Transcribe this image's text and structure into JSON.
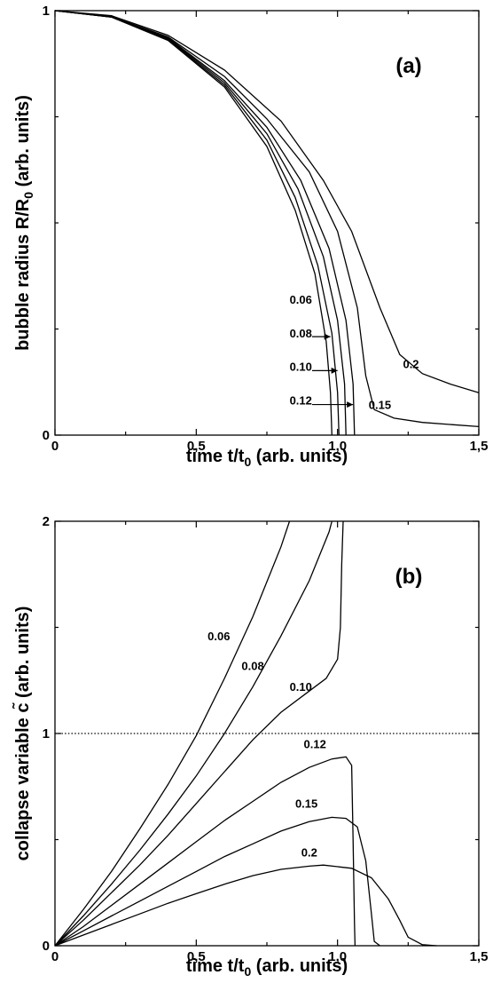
{
  "chart_data": [
    {
      "type": "line",
      "panel_label": "(a)",
      "xlabel": "time t/t",
      "xlabel_sub": "0",
      "xlabel_tail": "(arb. units)",
      "ylabel": "bubble radius R/R",
      "ylabel_sub": "0",
      "ylabel_tail": "(arb. units)",
      "xlim": [
        0,
        1.5
      ],
      "ylim": [
        0,
        1
      ],
      "x_ticklabels": [
        {
          "v": 0,
          "t": "0"
        },
        {
          "v": 0.5,
          "t": "0,5"
        },
        {
          "v": 1.0,
          "t": "1,0"
        },
        {
          "v": 1.5,
          "t": "1,5"
        }
      ],
      "y_ticklabels": [
        {
          "v": 0,
          "t": "0"
        },
        {
          "v": 1,
          "t": "1"
        }
      ],
      "series": [
        {
          "name": "0.06",
          "points": [
            [
              0,
              1
            ],
            [
              0.2,
              0.985
            ],
            [
              0.4,
              0.93
            ],
            [
              0.6,
              0.82
            ],
            [
              0.75,
              0.68
            ],
            [
              0.85,
              0.53
            ],
            [
              0.92,
              0.38
            ],
            [
              0.96,
              0.22
            ],
            [
              0.975,
              0.1
            ],
            [
              0.98,
              0
            ]
          ]
        },
        {
          "name": "0.08",
          "points": [
            [
              0,
              1
            ],
            [
              0.2,
              0.985
            ],
            [
              0.4,
              0.932
            ],
            [
              0.6,
              0.825
            ],
            [
              0.75,
              0.695
            ],
            [
              0.85,
              0.56
            ],
            [
              0.93,
              0.4
            ],
            [
              0.98,
              0.24
            ],
            [
              1.0,
              0.1
            ],
            [
              1.005,
              0
            ]
          ]
        },
        {
          "name": "0.10",
          "points": [
            [
              0,
              1
            ],
            [
              0.2,
              0.985
            ],
            [
              0.4,
              0.934
            ],
            [
              0.6,
              0.83
            ],
            [
              0.75,
              0.71
            ],
            [
              0.86,
              0.58
            ],
            [
              0.95,
              0.42
            ],
            [
              1.0,
              0.27
            ],
            [
              1.025,
              0.12
            ],
            [
              1.03,
              0
            ]
          ]
        },
        {
          "name": "0.12",
          "points": [
            [
              0,
              1
            ],
            [
              0.2,
              0.986
            ],
            [
              0.4,
              0.936
            ],
            [
              0.6,
              0.835
            ],
            [
              0.75,
              0.725
            ],
            [
              0.87,
              0.6
            ],
            [
              0.97,
              0.44
            ],
            [
              1.03,
              0.27
            ],
            [
              1.055,
              0.12
            ],
            [
              1.06,
              0
            ]
          ]
        },
        {
          "name": "0.15",
          "points": [
            [
              0,
              1
            ],
            [
              0.2,
              0.986
            ],
            [
              0.4,
              0.938
            ],
            [
              0.6,
              0.845
            ],
            [
              0.75,
              0.745
            ],
            [
              0.9,
              0.62
            ],
            [
              1.0,
              0.48
            ],
            [
              1.07,
              0.3
            ],
            [
              1.1,
              0.14
            ],
            [
              1.13,
              0.06
            ],
            [
              1.2,
              0.04
            ],
            [
              1.3,
              0.03
            ],
            [
              1.5,
              0.02
            ]
          ]
        },
        {
          "name": "0.2",
          "points": [
            [
              0,
              1
            ],
            [
              0.2,
              0.988
            ],
            [
              0.4,
              0.942
            ],
            [
              0.6,
              0.86
            ],
            [
              0.8,
              0.74
            ],
            [
              0.95,
              0.6
            ],
            [
              1.05,
              0.48
            ],
            [
              1.15,
              0.3
            ],
            [
              1.22,
              0.19
            ],
            [
              1.3,
              0.145
            ],
            [
              1.4,
              0.12
            ],
            [
              1.5,
              0.1
            ]
          ]
        }
      ],
      "curve_labels": [
        {
          "text": "0.06",
          "x": 0.87,
          "y": 0.31
        },
        {
          "text": "0.08",
          "x": 0.87,
          "y": 0.23
        },
        {
          "text": "0.10",
          "x": 0.87,
          "y": 0.152
        },
        {
          "text": "0.12",
          "x": 0.87,
          "y": 0.072
        },
        {
          "text": "0.15",
          "x": 1.15,
          "y": 0.062
        },
        {
          "text": "0.2",
          "x": 1.26,
          "y": 0.158
        }
      ],
      "arrows": [
        {
          "from": [
            0.91,
            0.232
          ],
          "to": [
            0.975,
            0.232
          ]
        },
        {
          "from": [
            0.91,
            0.152
          ],
          "to": [
            1.0,
            0.152
          ]
        },
        {
          "from": [
            0.91,
            0.072
          ],
          "to": [
            1.055,
            0.072
          ]
        }
      ]
    },
    {
      "type": "line",
      "panel_label": "(b)",
      "xlabel": "time t/t",
      "xlabel_sub": "0",
      "xlabel_tail": "(arb. units)",
      "ylabel": "collapse variable c̃",
      "ylabel_tail": "(arb. units)",
      "xlim": [
        0,
        1.5
      ],
      "ylim": [
        0,
        2
      ],
      "x_ticklabels": [
        {
          "v": 0,
          "t": "0"
        },
        {
          "v": 0.5,
          "t": "0,5"
        },
        {
          "v": 1.0,
          "t": "1,0"
        },
        {
          "v": 1.5,
          "t": "1,5"
        }
      ],
      "y_ticklabels": [
        {
          "v": 0,
          "t": "0"
        },
        {
          "v": 1,
          "t": "1"
        },
        {
          "v": 2,
          "t": "2"
        }
      ],
      "reference_line_y": 1,
      "series": [
        {
          "name": "0.06",
          "points": [
            [
              0,
              0
            ],
            [
              0.1,
              0.17
            ],
            [
              0.2,
              0.35
            ],
            [
              0.3,
              0.55
            ],
            [
              0.4,
              0.76
            ],
            [
              0.5,
              0.99
            ],
            [
              0.6,
              1.26
            ],
            [
              0.7,
              1.55
            ],
            [
              0.8,
              1.88
            ],
            [
              0.83,
              2.0
            ]
          ]
        },
        {
          "name": "0.08",
          "points": [
            [
              0,
              0
            ],
            [
              0.1,
              0.14
            ],
            [
              0.2,
              0.29
            ],
            [
              0.3,
              0.45
            ],
            [
              0.4,
              0.62
            ],
            [
              0.5,
              0.8
            ],
            [
              0.6,
              1.0
            ],
            [
              0.7,
              1.22
            ],
            [
              0.8,
              1.46
            ],
            [
              0.9,
              1.72
            ],
            [
              0.97,
              1.95
            ],
            [
              0.98,
              2.0
            ]
          ]
        },
        {
          "name": "0.10",
          "points": [
            [
              0,
              0
            ],
            [
              0.1,
              0.12
            ],
            [
              0.2,
              0.25
            ],
            [
              0.3,
              0.38
            ],
            [
              0.4,
              0.52
            ],
            [
              0.5,
              0.67
            ],
            [
              0.6,
              0.82
            ],
            [
              0.7,
              0.97
            ],
            [
              0.8,
              1.1
            ],
            [
              0.9,
              1.2
            ],
            [
              0.96,
              1.26
            ],
            [
              1.0,
              1.35
            ],
            [
              1.01,
              1.5
            ],
            [
              1.015,
              1.8
            ],
            [
              1.02,
              2.0
            ]
          ]
        },
        {
          "name": "0.12",
          "points": [
            [
              0,
              0
            ],
            [
              0.1,
              0.09
            ],
            [
              0.2,
              0.19
            ],
            [
              0.3,
              0.29
            ],
            [
              0.4,
              0.39
            ],
            [
              0.5,
              0.49
            ],
            [
              0.6,
              0.59
            ],
            [
              0.7,
              0.68
            ],
            [
              0.8,
              0.77
            ],
            [
              0.9,
              0.84
            ],
            [
              0.98,
              0.88
            ],
            [
              1.03,
              0.89
            ],
            [
              1.05,
              0.85
            ],
            [
              1.055,
              0.5
            ],
            [
              1.06,
              0.1
            ],
            [
              1.062,
              0
            ]
          ]
        },
        {
          "name": "0.15",
          "points": [
            [
              0,
              0
            ],
            [
              0.1,
              0.07
            ],
            [
              0.2,
              0.14
            ],
            [
              0.3,
              0.21
            ],
            [
              0.4,
              0.28
            ],
            [
              0.5,
              0.35
            ],
            [
              0.6,
              0.42
            ],
            [
              0.7,
              0.48
            ],
            [
              0.8,
              0.54
            ],
            [
              0.9,
              0.585
            ],
            [
              0.98,
              0.605
            ],
            [
              1.03,
              0.6
            ],
            [
              1.07,
              0.56
            ],
            [
              1.1,
              0.4
            ],
            [
              1.12,
              0.15
            ],
            [
              1.13,
              0.02
            ],
            [
              1.15,
              0
            ]
          ]
        },
        {
          "name": "0.2",
          "points": [
            [
              0,
              0
            ],
            [
              0.1,
              0.05
            ],
            [
              0.2,
              0.1
            ],
            [
              0.3,
              0.15
            ],
            [
              0.4,
              0.2
            ],
            [
              0.5,
              0.245
            ],
            [
              0.6,
              0.29
            ],
            [
              0.7,
              0.33
            ],
            [
              0.8,
              0.36
            ],
            [
              0.9,
              0.375
            ],
            [
              0.95,
              0.38
            ],
            [
              1.05,
              0.365
            ],
            [
              1.12,
              0.32
            ],
            [
              1.18,
              0.22
            ],
            [
              1.22,
              0.12
            ],
            [
              1.25,
              0.04
            ],
            [
              1.3,
              0.005
            ],
            [
              1.35,
              0
            ]
          ]
        }
      ],
      "curve_labels": [
        {
          "text": "0.06",
          "x": 0.58,
          "y": 1.44
        },
        {
          "text": "0.08",
          "x": 0.7,
          "y": 1.3
        },
        {
          "text": "0.10",
          "x": 0.87,
          "y": 1.2
        },
        {
          "text": "0.12",
          "x": 0.92,
          "y": 0.93
        },
        {
          "text": "0.15",
          "x": 0.89,
          "y": 0.65
        },
        {
          "text": "0.2",
          "x": 0.9,
          "y": 0.42
        }
      ]
    }
  ]
}
